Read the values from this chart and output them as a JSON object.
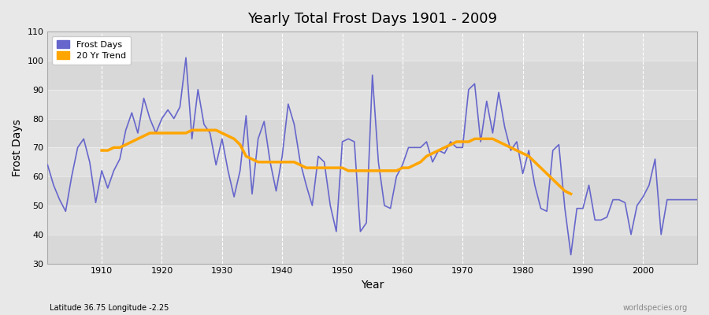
{
  "title": "Yearly Total Frost Days 1901 - 2009",
  "xlabel": "Year",
  "ylabel": "Frost Days",
  "lat_lon_label": "Latitude 36.75 Longitude -2.25",
  "watermark": "worldspecies.org",
  "xlim": [
    1901,
    2009
  ],
  "ylim": [
    30,
    110
  ],
  "yticks": [
    30,
    40,
    50,
    60,
    70,
    80,
    90,
    100,
    110
  ],
  "xticks": [
    1910,
    1920,
    1930,
    1940,
    1950,
    1960,
    1970,
    1980,
    1990,
    2000
  ],
  "frost_color": "#6666cc",
  "trend_color": "#FFA500",
  "bg_color": "#e8e8e8",
  "plot_bg_color": "#dcdcdc",
  "stripe_colors": [
    "#d8d8d8",
    "#e0e0e0"
  ],
  "frost_days": {
    "1901": 64,
    "1902": 57,
    "1903": 52,
    "1904": 48,
    "1905": 60,
    "1906": 70,
    "1907": 73,
    "1908": 65,
    "1909": 51,
    "1910": 62,
    "1911": 56,
    "1912": 62,
    "1913": 66,
    "1914": 76,
    "1915": 82,
    "1916": 75,
    "1917": 87,
    "1918": 80,
    "1919": 75,
    "1920": 80,
    "1921": 83,
    "1922": 80,
    "1923": 84,
    "1924": 101,
    "1925": 73,
    "1926": 90,
    "1927": 78,
    "1928": 75,
    "1929": 64,
    "1930": 73,
    "1931": 62,
    "1932": 53,
    "1933": 62,
    "1934": 81,
    "1935": 54,
    "1936": 73,
    "1937": 79,
    "1938": 65,
    "1939": 55,
    "1940": 67,
    "1941": 85,
    "1942": 78,
    "1943": 65,
    "1944": 57,
    "1945": 50,
    "1946": 67,
    "1947": 65,
    "1948": 50,
    "1949": 41,
    "1950": 72,
    "1951": 73,
    "1952": 72,
    "1953": 41,
    "1954": 44,
    "1955": 95,
    "1956": 65,
    "1957": 50,
    "1958": 49,
    "1959": 60,
    "1960": 64,
    "1961": 70,
    "1962": 70,
    "1963": 70,
    "1964": 72,
    "1965": 65,
    "1966": 69,
    "1967": 68,
    "1968": 72,
    "1969": 70,
    "1970": 70,
    "1971": 90,
    "1972": 92,
    "1973": 72,
    "1974": 86,
    "1975": 75,
    "1976": 89,
    "1977": 77,
    "1978": 69,
    "1979": 72,
    "1980": 61,
    "1981": 69,
    "1982": 57,
    "1983": 49,
    "1984": 48,
    "1985": 69,
    "1986": 71,
    "1987": 49,
    "1988": 33,
    "1989": 49,
    "1990": 49,
    "1991": 57,
    "1992": 45,
    "1993": 45,
    "1994": 46,
    "1995": 52,
    "1996": 52,
    "1997": 51,
    "1998": 40,
    "1999": 50,
    "2000": 53,
    "2001": 57,
    "2002": 66,
    "2003": 40,
    "2004": 52,
    "2005": 52,
    "2006": 52,
    "2007": 52,
    "2008": 52,
    "2009": 52
  },
  "trend_20yr": {
    "1910": 69,
    "1911": 69,
    "1912": 70,
    "1913": 70,
    "1914": 71,
    "1915": 72,
    "1916": 73,
    "1917": 74,
    "1918": 75,
    "1919": 75,
    "1920": 75,
    "1921": 75,
    "1922": 75,
    "1923": 75,
    "1924": 75,
    "1925": 76,
    "1926": 76,
    "1927": 76,
    "1928": 76,
    "1929": 76,
    "1930": 75,
    "1931": 74,
    "1932": 73,
    "1933": 71,
    "1934": 67,
    "1935": 66,
    "1936": 65,
    "1937": 65,
    "1938": 65,
    "1939": 65,
    "1940": 65,
    "1941": 65,
    "1942": 65,
    "1943": 64,
    "1944": 63,
    "1945": 63,
    "1946": 63,
    "1947": 63,
    "1948": 63,
    "1949": 63,
    "1950": 63,
    "1951": 62,
    "1952": 62,
    "1953": 62,
    "1954": 62,
    "1955": 62,
    "1956": 62,
    "1957": 62,
    "1958": 62,
    "1959": 62,
    "1960": 63,
    "1961": 63,
    "1962": 64,
    "1963": 65,
    "1964": 67,
    "1965": 68,
    "1966": 69,
    "1967": 70,
    "1968": 71,
    "1969": 72,
    "1970": 72,
    "1971": 72,
    "1972": 73,
    "1973": 73,
    "1974": 73,
    "1975": 73,
    "1976": 72,
    "1977": 71,
    "1978": 70,
    "1979": 69,
    "1980": 68,
    "1981": 67,
    "1982": 65,
    "1983": 63,
    "1984": 61,
    "1985": 59,
    "1986": 57,
    "1987": 55,
    "1988": 54
  }
}
